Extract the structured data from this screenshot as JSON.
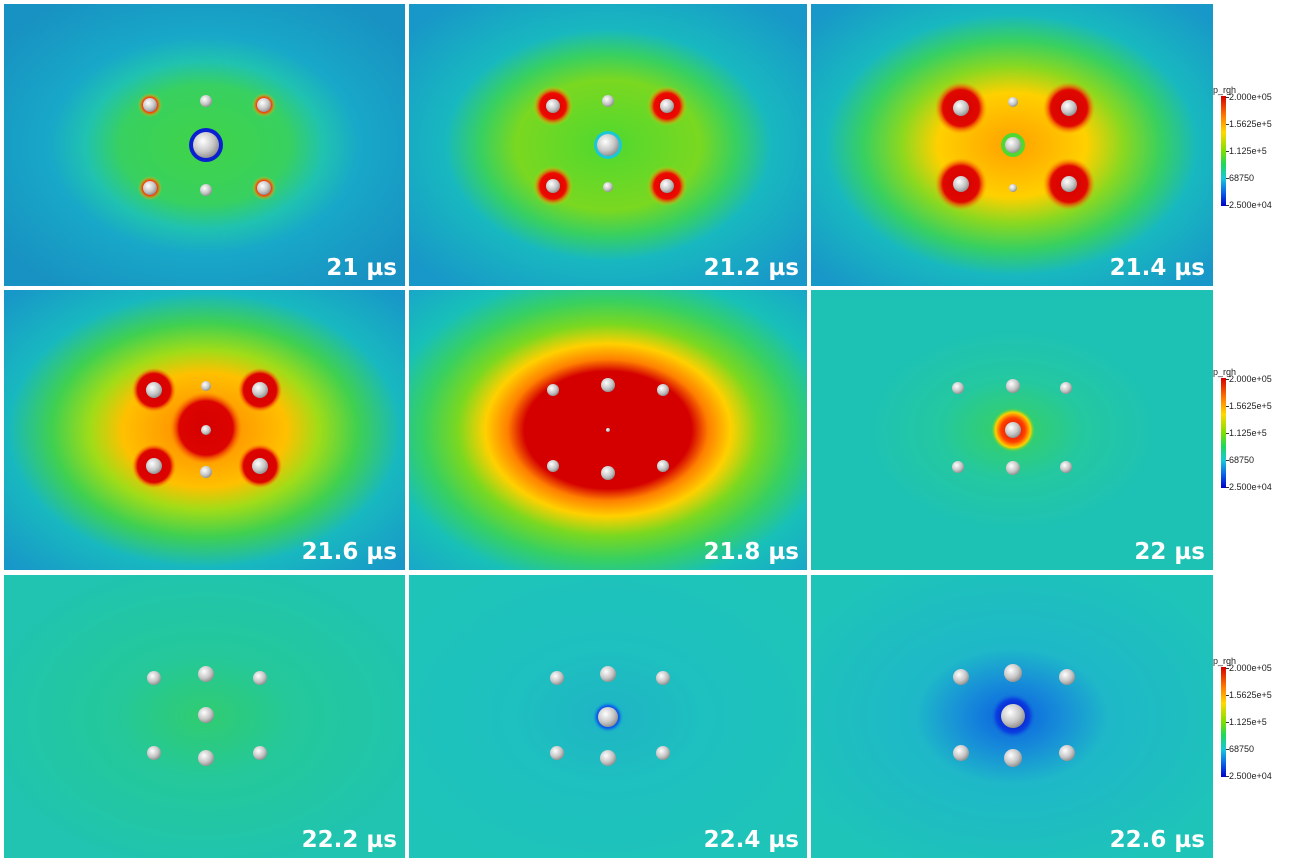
{
  "panels": [
    {
      "time_label": "21 µs"
    },
    {
      "time_label": "21.2 µs"
    },
    {
      "time_label": "21.4 µs"
    },
    {
      "time_label": "21.6 µs"
    },
    {
      "time_label": "21.8 µs"
    },
    {
      "time_label": "22 µs"
    },
    {
      "time_label": "22.2 µs"
    },
    {
      "time_label": "22.4 µs"
    },
    {
      "time_label": "22.6 µs"
    }
  ],
  "colorbar": {
    "title": "p_rgh",
    "labels": [
      "2.000e+05",
      "1.5625e+5",
      "1.125e+5",
      "68750",
      "2.500e+04"
    ]
  },
  "colors": {
    "high": "#d40000",
    "mid_high": "#ffd800",
    "mid": "#1ed85a",
    "low_mid": "#18c8d8",
    "low": "#0000c8",
    "bubble": "#c8c8c8",
    "label_text": "#ffffff"
  }
}
